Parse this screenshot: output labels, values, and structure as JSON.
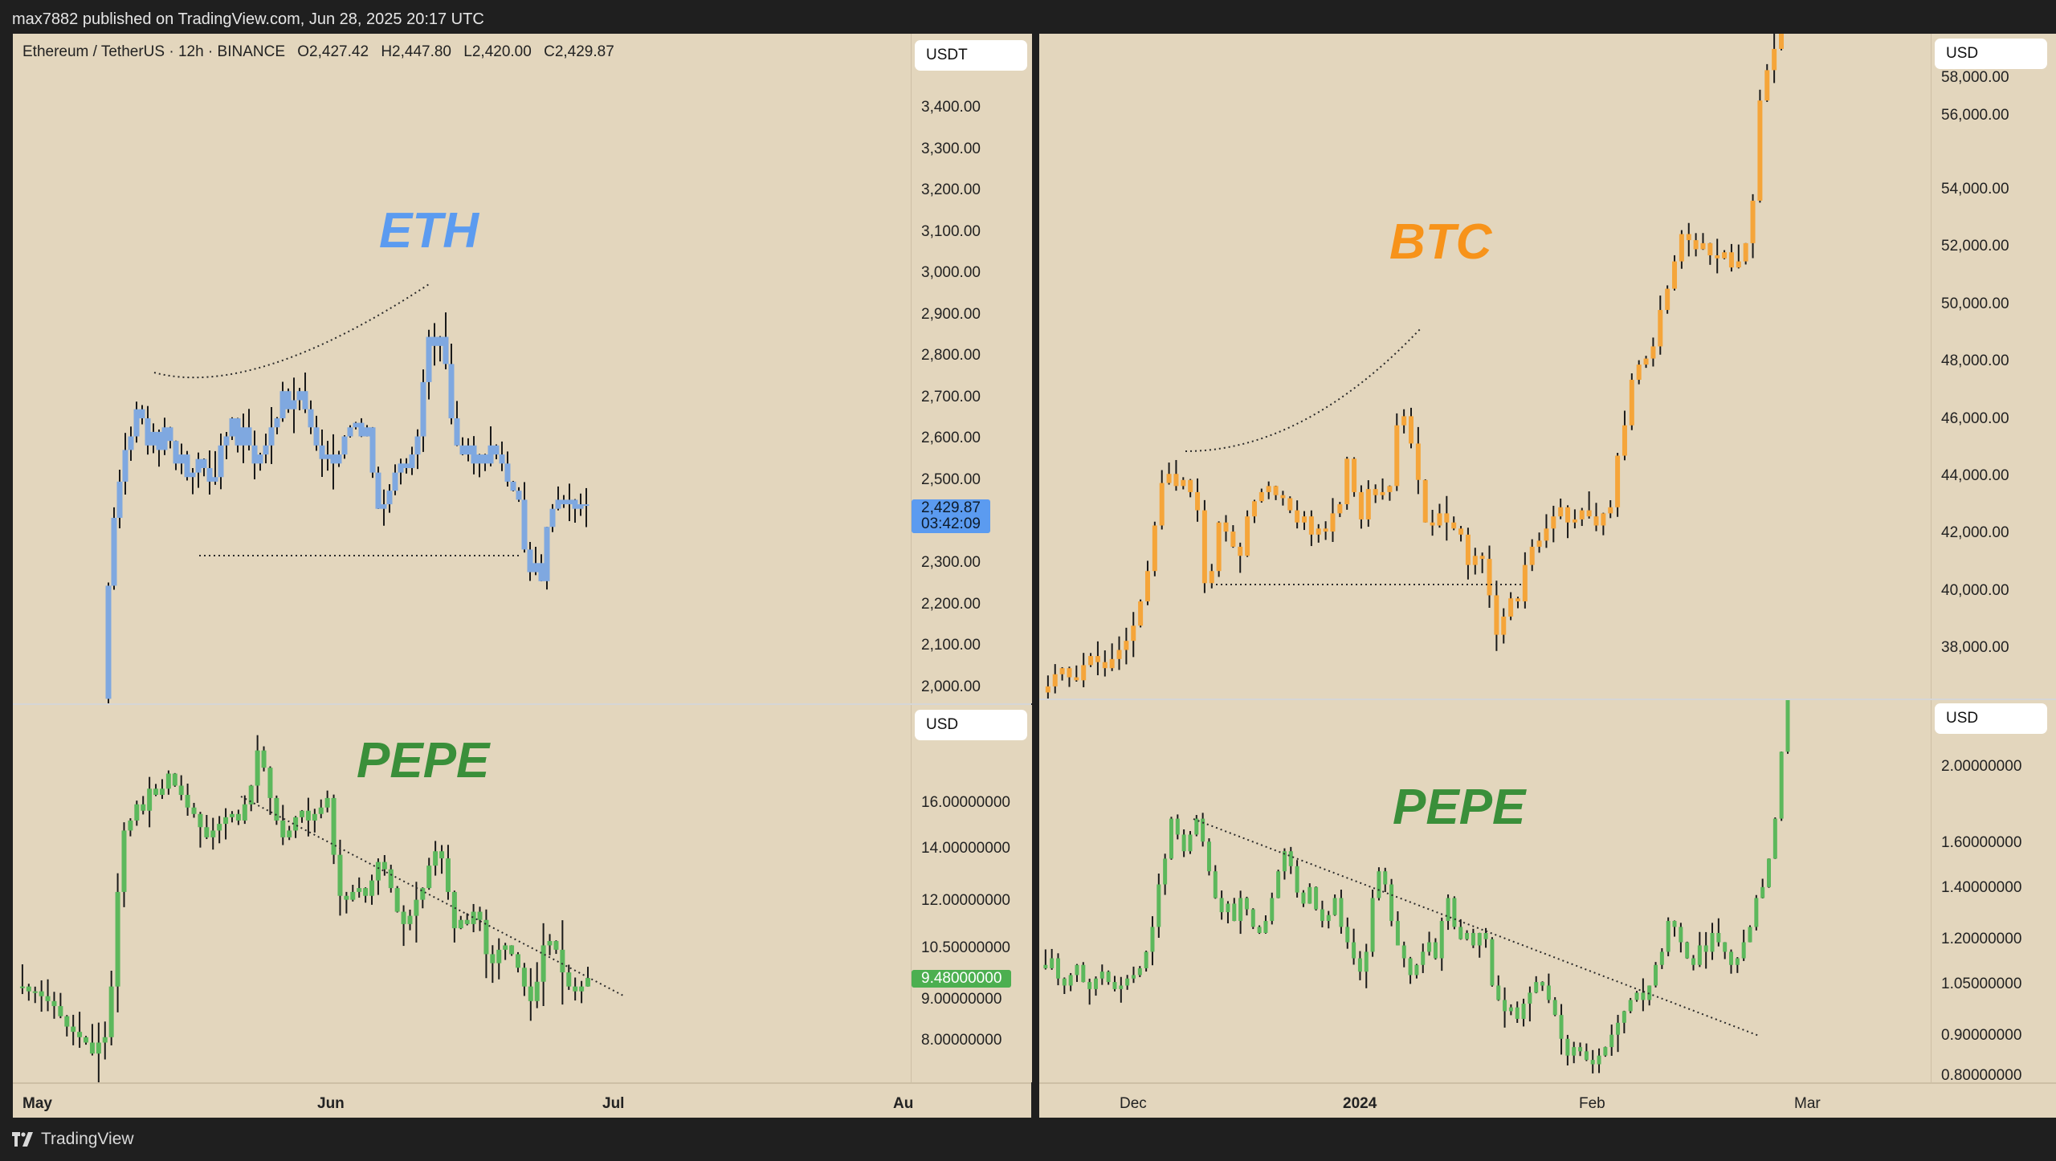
{
  "header": {
    "publisher_line": "max7882 published on TradingView.com, Jun 28, 2025 20:17 UTC"
  },
  "footer": {
    "brand": "TradingView",
    "logo_icon": "tradingview-logo-icon"
  },
  "colors": {
    "background": "#e3d6bd",
    "eth": "#7fa8e0",
    "eth_label": "#5b9bf0",
    "btc": "#f5a53a",
    "btc_label": "#f7931a",
    "pepe": "#5cb85c",
    "pepe_label": "#3a8f3a",
    "wick": "#1a1a1a",
    "eth_tag": "#5b9bf0",
    "pepe_tag": "#4caf50"
  },
  "left_panel": {
    "legend": {
      "symbol": "Ethereum / TetherUS · 12h · BINANCE",
      "open": "O2,427.42",
      "high": "H2,447.80",
      "low": "L2,420.00",
      "close": "C2,429.87"
    },
    "top": {
      "label": "ETH",
      "unit": "USDT",
      "ticks": [
        "3,400.00",
        "3,300.00",
        "3,200.00",
        "3,100.00",
        "3,000.00",
        "2,900.00",
        "2,800.00",
        "2,700.00",
        "2,600.00",
        "2,500.00",
        "2,300.00",
        "2,200.00",
        "2,100.00",
        "2,000.00"
      ],
      "last_price": "2,429.87",
      "countdown": "03:42:09"
    },
    "bottom": {
      "label": "PEPE",
      "unit": "USD",
      "ticks": [
        "16.00000000",
        "14.00000000",
        "12.00000000",
        "10.50000000",
        "9.00000000",
        "8.00000000"
      ],
      "last_price": "9.48000000"
    },
    "xaxis": [
      "May",
      "Jun",
      "Jul",
      "Au"
    ]
  },
  "right_panel": {
    "top": {
      "label": "BTC",
      "unit": "USD",
      "ticks": [
        "58,000.00",
        "56,000.00",
        "54,000.00",
        "52,000.00",
        "50,000.00",
        "48,000.00",
        "46,000.00",
        "44,000.00",
        "42,000.00",
        "40,000.00",
        "38,000.00"
      ]
    },
    "bottom": {
      "label": "PEPE",
      "unit": "USD",
      "ticks": [
        "2.00000000",
        "1.60000000",
        "1.40000000",
        "1.20000000",
        "1.05000000",
        "0.90000000",
        "0.80000000"
      ]
    },
    "xaxis": [
      "Dec",
      "2024",
      "Feb",
      "Mar"
    ]
  },
  "chart_data": [
    {
      "type": "candlestick",
      "title": "ETH (Ethereum / TetherUS · 12h · BINANCE)",
      "ylabel": "USDT",
      "ylim": [
        1990,
        3470
      ],
      "x_ticks": [
        "May",
        "Jun",
        "Jul",
        "Au"
      ],
      "annotations": [
        "dotted rounded-top arc above highs",
        "dotted horizontal support ~2,330"
      ],
      "last": 2429.87,
      "close_path": [
        2000,
        2250,
        2400,
        2480,
        2550,
        2580,
        2640,
        2620,
        2560,
        2590,
        2550,
        2600,
        2570,
        2520,
        2540,
        2490,
        2500,
        2530,
        2510,
        2480,
        2490,
        2560,
        2580,
        2620,
        2560,
        2600,
        2560,
        2520,
        2540,
        2560,
        2600,
        2620,
        2680,
        2640,
        2660,
        2680,
        2640,
        2600,
        2560,
        2530,
        2540,
        2520,
        2540,
        2580,
        2600,
        2610,
        2580,
        2600,
        2500,
        2420,
        2430,
        2460,
        2500,
        2520,
        2510,
        2540,
        2580,
        2700,
        2800,
        2780,
        2800,
        2740,
        2620,
        2560,
        2540,
        2560,
        2520,
        2540,
        2520,
        2560,
        2540,
        2520,
        2480,
        2460,
        2440,
        2330,
        2280,
        2300,
        2260,
        2380,
        2420,
        2440,
        2430,
        2440,
        2420,
        2430,
        2430
      ],
      "range": 45
    },
    {
      "type": "candlestick",
      "title": "PEPE (left, log scale)",
      "ylabel": "USD",
      "yticks": [
        16,
        14,
        12,
        10.5,
        9,
        8
      ],
      "ylim": [
        7.5,
        17.5
      ],
      "x_ticks": [
        "May",
        "Jun",
        "Jul",
        "Au"
      ],
      "annotations": [
        "dotted descending trendline from peak ~16.5"
      ],
      "last": 9.48,
      "close_path": [
        9.3,
        9.3,
        9.2,
        9.2,
        9.1,
        9.0,
        8.9,
        8.7,
        8.5,
        8.4,
        8.3,
        8.2,
        8.0,
        8.2,
        8.3,
        9.3,
        11.5,
        13.2,
        13.5,
        14.0,
        13.8,
        14.5,
        14.3,
        14.5,
        15.0,
        14.6,
        14.3,
        13.9,
        13.7,
        13.3,
        13.0,
        13.2,
        13.4,
        13.6,
        13.7,
        13.5,
        14.0,
        14.6,
        15.8,
        15.2,
        14.2,
        13.5,
        13.0,
        13.2,
        13.6,
        13.8,
        13.5,
        13.7,
        13.9,
        14.2,
        12.5,
        11.4,
        11.3,
        11.5,
        11.6,
        11.4,
        11.8,
        12.3,
        12.1,
        11.6,
        11.0,
        10.7,
        10.9,
        11.3,
        11.6,
        12.2,
        12.6,
        12.4,
        11.5,
        10.6,
        10.8,
        10.7,
        11.0,
        10.8,
        10.0,
        9.8,
        10.1,
        10.2,
        10.0,
        9.7,
        9.3,
        9.0,
        9.4,
        10.2,
        10.3,
        10.1,
        9.6,
        9.3,
        9.2,
        9.3,
        9.48
      ],
      "range": 0.5
    },
    {
      "type": "candlestick",
      "title": "BTC",
      "ylabel": "USD",
      "ylim": [
        36800,
        58700
      ],
      "x_ticks": [
        "Dec",
        "2024",
        "Feb",
        "Mar"
      ],
      "annotations": [
        "dotted rounded-top arc",
        "dotted horizontal support ~40,200"
      ],
      "close_path": [
        37000,
        37200,
        37600,
        37800,
        37500,
        37400,
        37900,
        38200,
        38000,
        37800,
        38100,
        38400,
        38700,
        39200,
        40000,
        41000,
        42500,
        43900,
        44200,
        43800,
        44000,
        43600,
        43000,
        40600,
        41000,
        42600,
        42300,
        41800,
        41500,
        42800,
        43300,
        43600,
        43800,
        43500,
        43400,
        43000,
        42600,
        42800,
        42200,
        42400,
        42300,
        42900,
        43200,
        44700,
        43600,
        42700,
        43700,
        43500,
        43600,
        43800,
        45800,
        46100,
        45200,
        44000,
        42600,
        42500,
        42900,
        42600,
        42400,
        42200,
        41200,
        41500,
        41400,
        40200,
        38900,
        39500,
        40100,
        40000,
        41200,
        41800,
        42000,
        42400,
        42800,
        43100,
        42600,
        42700,
        43000,
        42800,
        42500,
        42900,
        43100,
        44800,
        45800,
        47300,
        47800,
        48000,
        48400,
        49600,
        50300,
        51200,
        52100,
        51900,
        51600,
        51800,
        51400,
        51300,
        51500,
        51000,
        51200,
        51800,
        53200,
        56500,
        57500,
        58200,
        59500
      ],
      "range": 500
    },
    {
      "type": "candlestick",
      "title": "PEPE (right, log scale)",
      "ylabel": "USD",
      "yticks": [
        2.0,
        1.6,
        1.4,
        1.2,
        1.05,
        0.9,
        0.8
      ],
      "ylim": [
        0.78,
        2.25
      ],
      "x_ticks": [
        "Dec",
        "2024",
        "Feb",
        "Mar"
      ],
      "annotations": [
        "dotted descending trendline broken to upside"
      ],
      "close_path": [
        1.08,
        1.07,
        1.1,
        1.04,
        1.02,
        1.05,
        1.08,
        1.03,
        1.01,
        1.04,
        1.06,
        1.03,
        1.01,
        1.02,
        1.04,
        1.05,
        1.07,
        1.12,
        1.2,
        1.35,
        1.45,
        1.62,
        1.55,
        1.48,
        1.55,
        1.62,
        1.52,
        1.4,
        1.3,
        1.25,
        1.28,
        1.22,
        1.3,
        1.26,
        1.2,
        1.18,
        1.22,
        1.3,
        1.4,
        1.48,
        1.42,
        1.32,
        1.28,
        1.34,
        1.26,
        1.22,
        1.24,
        1.3,
        1.2,
        1.15,
        1.1,
        1.06,
        1.12,
        1.3,
        1.4,
        1.35,
        1.22,
        1.14,
        1.1,
        1.05,
        1.08,
        1.12,
        1.15,
        1.1,
        1.22,
        1.3,
        1.2,
        1.16,
        1.18,
        1.14,
        1.18,
        1.16,
        1.02,
        0.98,
        0.95,
        0.96,
        0.93,
        0.97,
        1.0,
        1.03,
        1.02,
        0.98,
        0.94,
        0.88,
        0.84,
        0.86,
        0.85,
        0.83,
        0.82,
        0.84,
        0.86,
        0.89,
        0.92,
        0.95,
        0.98,
        1.0,
        0.98,
        1.02,
        1.08,
        1.12,
        1.22,
        1.2,
        1.15,
        1.1,
        1.08,
        1.14,
        1.12,
        1.18,
        1.15,
        1.12,
        1.08,
        1.1,
        1.15,
        1.2,
        1.3,
        1.34,
        1.45,
        1.62,
        1.95,
        2.25
      ],
      "range": 0.04
    }
  ]
}
